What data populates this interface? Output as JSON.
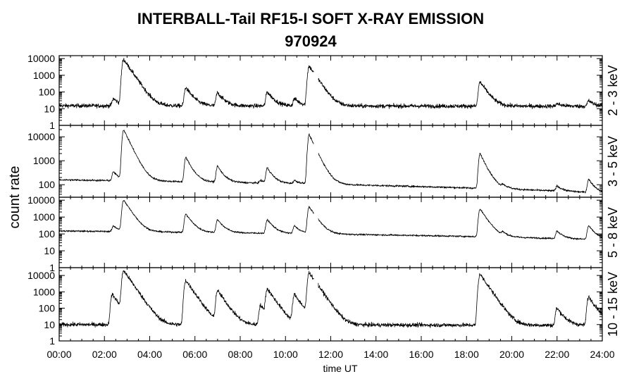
{
  "title": "INTERBALL-Tail RF15-I SOFT X-RAY EMISSION",
  "subtitle": "970924",
  "xlabel": "time UT",
  "ylabel": "count rate",
  "x_ticks": [
    "00:00",
    "02:00",
    "04:00",
    "06:00",
    "08:00",
    "10:00",
    "12:00",
    "14:00",
    "16:00",
    "18:00",
    "20:00",
    "22:00",
    "24:00"
  ],
  "chart_data": [
    {
      "type": "line",
      "name": "2 - 3 keV",
      "y_scale": "log",
      "ylim": [
        1,
        15000
      ],
      "y_ticks": [
        "10000",
        "1000",
        "100",
        "10",
        "1"
      ],
      "xlim_hours": [
        0,
        24
      ],
      "baseline": 15,
      "baseline_end": 14,
      "noise_dex": 0.12,
      "gaps": [
        [
          11.25,
          11.45
        ]
      ],
      "peaks": [
        {
          "t": 2.4,
          "v": 40
        },
        {
          "t": 2.85,
          "v": 9000
        },
        {
          "t": 5.6,
          "v": 180
        },
        {
          "t": 7.0,
          "v": 90
        },
        {
          "t": 9.2,
          "v": 100
        },
        {
          "t": 10.4,
          "v": 40
        },
        {
          "t": 11.05,
          "v": 3500
        },
        {
          "t": 18.6,
          "v": 400
        },
        {
          "t": 22.0,
          "v": 20
        },
        {
          "t": 23.4,
          "v": 30
        }
      ]
    },
    {
      "type": "line",
      "name": "3 - 5 keV",
      "y_scale": "log",
      "ylim": [
        30,
        30000
      ],
      "y_ticks": [
        "10000",
        "1000",
        "100"
      ],
      "xlim_hours": [
        0,
        24
      ],
      "baseline": 160,
      "baseline_end": 45,
      "noise_dex": 0.04,
      "gaps": [
        [
          11.25,
          11.45
        ]
      ],
      "peaks": [
        {
          "t": 2.4,
          "v": 350
        },
        {
          "t": 2.85,
          "v": 20000
        },
        {
          "t": 5.6,
          "v": 1400
        },
        {
          "t": 7.0,
          "v": 600
        },
        {
          "t": 8.9,
          "v": 150
        },
        {
          "t": 9.2,
          "v": 500
        },
        {
          "t": 10.4,
          "v": 150
        },
        {
          "t": 11.05,
          "v": 12000
        },
        {
          "t": 18.6,
          "v": 2000
        },
        {
          "t": 19.6,
          "v": 90
        },
        {
          "t": 22.0,
          "v": 90
        },
        {
          "t": 23.4,
          "v": 170
        }
      ]
    },
    {
      "type": "line",
      "name": "5 - 8 keV",
      "y_scale": "log",
      "ylim": [
        1,
        15000
      ],
      "y_ticks": [
        "10000",
        "1000",
        "100",
        "10",
        "1"
      ],
      "xlim_hours": [
        0,
        24
      ],
      "baseline": 150,
      "baseline_end": 45,
      "noise_dex": 0.05,
      "gaps": [
        [
          11.25,
          11.45
        ]
      ],
      "peaks": [
        {
          "t": 2.4,
          "v": 300
        },
        {
          "t": 2.85,
          "v": 10000
        },
        {
          "t": 5.6,
          "v": 1500
        },
        {
          "t": 7.0,
          "v": 700
        },
        {
          "t": 9.2,
          "v": 700
        },
        {
          "t": 10.4,
          "v": 300
        },
        {
          "t": 11.05,
          "v": 4000
        },
        {
          "t": 18.6,
          "v": 3000
        },
        {
          "t": 19.6,
          "v": 110
        },
        {
          "t": 22.0,
          "v": 150
        },
        {
          "t": 23.4,
          "v": 300
        }
      ]
    },
    {
      "type": "line",
      "name": "10 - 15 keV",
      "y_scale": "log",
      "ylim": [
        1,
        30000
      ],
      "y_ticks": [
        "10000",
        "1000",
        "100",
        "10",
        "1"
      ],
      "xlim_hours": [
        0,
        24
      ],
      "baseline": 10,
      "baseline_end": 9,
      "noise_dex": 0.12,
      "gaps": [
        [
          11.25,
          11.45
        ]
      ],
      "peaks": [
        {
          "t": 2.35,
          "v": 700
        },
        {
          "t": 2.85,
          "v": 20000
        },
        {
          "t": 5.6,
          "v": 5000
        },
        {
          "t": 7.0,
          "v": 1200
        },
        {
          "t": 8.9,
          "v": 150
        },
        {
          "t": 9.2,
          "v": 1500
        },
        {
          "t": 10.4,
          "v": 700
        },
        {
          "t": 11.05,
          "v": 15000
        },
        {
          "t": 18.6,
          "v": 12000
        },
        {
          "t": 22.0,
          "v": 100
        },
        {
          "t": 23.4,
          "v": 500
        }
      ]
    }
  ]
}
